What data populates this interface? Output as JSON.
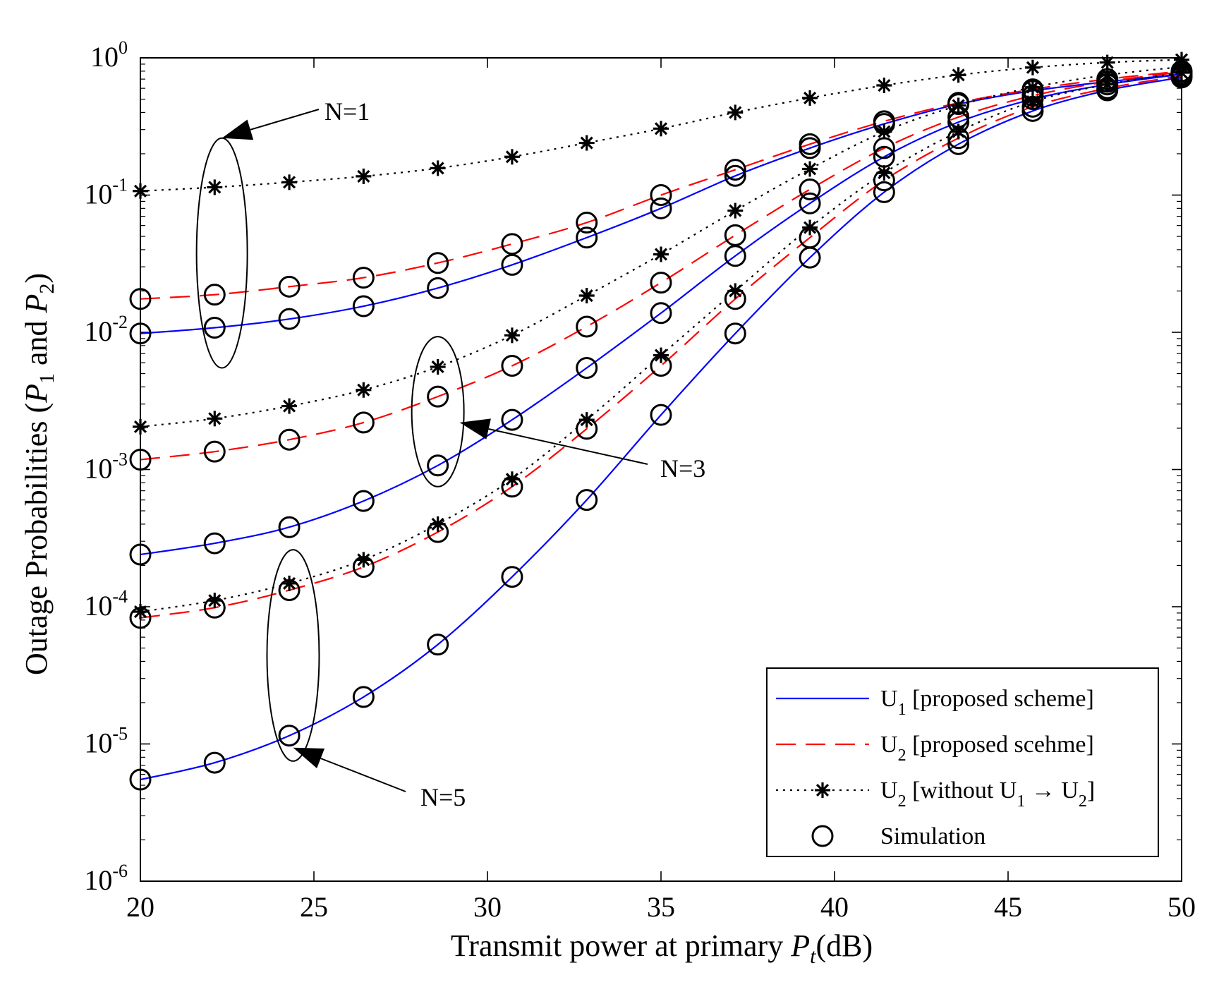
{
  "chart_data": {
    "type": "line",
    "yscale": "log",
    "xlabel": "Transmit power at primary P_t(dB)",
    "xlabel_parts": {
      "main": "Transmit power at primary ",
      "sym": "P",
      "sub": "t",
      "unit": "(dB)"
    },
    "ylabel": "Outage Probabilities (P_1 and P_2)",
    "ylabel_parts": {
      "pre": "Outage Probabilities (",
      "sym1": "P",
      "sub1": "1",
      "mid": " and ",
      "sym2": "P",
      "sub2": "2",
      "post": ")"
    },
    "xlim": [
      20,
      50
    ],
    "ylim": [
      1e-06,
      1
    ],
    "xticks": [
      20,
      25,
      30,
      35,
      40,
      45,
      50
    ],
    "xtick_labels": [
      "20",
      "25",
      "30",
      "35",
      "40",
      "45",
      "50"
    ],
    "yticks": [
      1e-06,
      1e-05,
      0.0001,
      0.001,
      0.01,
      0.1,
      1
    ],
    "ytick_labels": [
      {
        "base": "10",
        "exp": "-6"
      },
      {
        "base": "10",
        "exp": "-5"
      },
      {
        "base": "10",
        "exp": "-4"
      },
      {
        "base": "10",
        "exp": "-3"
      },
      {
        "base": "10",
        "exp": "-2"
      },
      {
        "base": "10",
        "exp": "-1"
      },
      {
        "base": "10",
        "exp": "0"
      }
    ],
    "x": [
      20,
      22.14,
      24.29,
      26.43,
      28.57,
      30.71,
      32.86,
      35,
      37.14,
      39.29,
      41.43,
      43.57,
      45.71,
      47.86,
      50
    ],
    "colors": {
      "u1": "#0000ff",
      "u2": "#ff0000",
      "u2_without": "#000000",
      "sim": "#000000"
    },
    "legend": {
      "position": "bottom-right",
      "entries": [
        {
          "base": "U",
          "sub": "1",
          "text": " [proposed scheme]",
          "style": "solid-blue"
        },
        {
          "base": "U",
          "sub": "2",
          "text": " [proposed scehme]",
          "style": "dashed-red"
        },
        {
          "base": "U",
          "sub": "2",
          "text": " [without U",
          "sub2": "1",
          "text2": " → U",
          "sub3": "2",
          "text3": "]",
          "style": "dotted-star"
        },
        {
          "text": "Simulation",
          "style": "circle"
        }
      ]
    },
    "series": [
      {
        "name": "U1 [proposed scheme] N=1",
        "style": "solid-blue",
        "marker": "circle",
        "values": [
          0.0098,
          0.0108,
          0.0125,
          0.0155,
          0.021,
          0.031,
          0.049,
          0.08,
          0.138,
          0.22,
          0.33,
          0.46,
          0.575,
          0.67,
          0.76
        ]
      },
      {
        "name": "U2 [proposed scheme] N=1",
        "style": "dashed-red",
        "marker": "circle",
        "values": [
          0.0175,
          0.0188,
          0.0215,
          0.025,
          0.032,
          0.044,
          0.063,
          0.1,
          0.153,
          0.235,
          0.345,
          0.47,
          0.59,
          0.7,
          0.8
        ]
      },
      {
        "name": "U2 [without U1->U2] N=1",
        "style": "dotted-star",
        "marker": "star",
        "values": [
          0.107,
          0.114,
          0.124,
          0.137,
          0.157,
          0.19,
          0.24,
          0.305,
          0.4,
          0.51,
          0.63,
          0.75,
          0.85,
          0.925,
          0.97
        ]
      },
      {
        "name": "U1 [proposed scheme] N=3",
        "style": "solid-blue",
        "marker": "circle",
        "values": [
          0.00024,
          0.00029,
          0.00038,
          0.00059,
          0.00107,
          0.0023,
          0.0055,
          0.0138,
          0.036,
          0.087,
          0.19,
          0.34,
          0.5,
          0.64,
          0.76
        ]
      },
      {
        "name": "U2 [proposed scheme] N=3",
        "style": "dashed-red",
        "marker": "circle",
        "values": [
          0.00118,
          0.00135,
          0.00165,
          0.0022,
          0.0034,
          0.0057,
          0.011,
          0.023,
          0.051,
          0.11,
          0.22,
          0.37,
          0.53,
          0.67,
          0.79
        ]
      },
      {
        "name": "U2 [without U1->U2] N=3",
        "style": "dotted-star",
        "marker": "star",
        "values": [
          0.00205,
          0.00235,
          0.0029,
          0.0038,
          0.0056,
          0.0095,
          0.0185,
          0.037,
          0.077,
          0.155,
          0.29,
          0.45,
          0.61,
          0.75,
          0.86
        ]
      },
      {
        "name": "U1 [proposed scheme] N=5",
        "style": "solid-blue",
        "marker": "circle",
        "values": [
          5.5e-06,
          7.3e-06,
          1.15e-05,
          2.2e-05,
          5.3e-05,
          0.000165,
          0.0006,
          0.0025,
          0.0098,
          0.035,
          0.105,
          0.235,
          0.41,
          0.58,
          0.72
        ]
      },
      {
        "name": "U2 [proposed scheme] N=5",
        "style": "dashed-red",
        "marker": "circle",
        "values": [
          8.3e-05,
          9.85e-05,
          0.000132,
          0.000195,
          0.00035,
          0.00075,
          0.00198,
          0.0057,
          0.0175,
          0.049,
          0.128,
          0.26,
          0.44,
          0.6,
          0.74
        ]
      },
      {
        "name": "U2 [without U1->U2] N=5",
        "style": "dotted-star",
        "marker": "star",
        "values": [
          9.2e-05,
          0.000111,
          0.000148,
          0.00022,
          0.0004,
          0.00085,
          0.0023,
          0.0068,
          0.02,
          0.058,
          0.145,
          0.29,
          0.48,
          0.64,
          0.78
        ]
      }
    ],
    "annotations": [
      {
        "text": "N=1",
        "group": "N=1",
        "x_center": 22.35,
        "y_low": 0.0055,
        "y_high": 0.26,
        "arrow_to": [
          22.35,
          0.26
        ]
      },
      {
        "text": "N=3",
        "group": "N=3",
        "x_center": 28.57,
        "y_low": 0.00075,
        "y_high": 0.0093,
        "arrow_to": [
          29.2,
          0.0022
        ]
      },
      {
        "text": "N=5",
        "group": "N=5",
        "x_center": 24.4,
        "y_low": 7.5e-06,
        "y_high": 0.00026,
        "arrow_to": [
          24.4,
          9.4e-06
        ]
      }
    ]
  }
}
